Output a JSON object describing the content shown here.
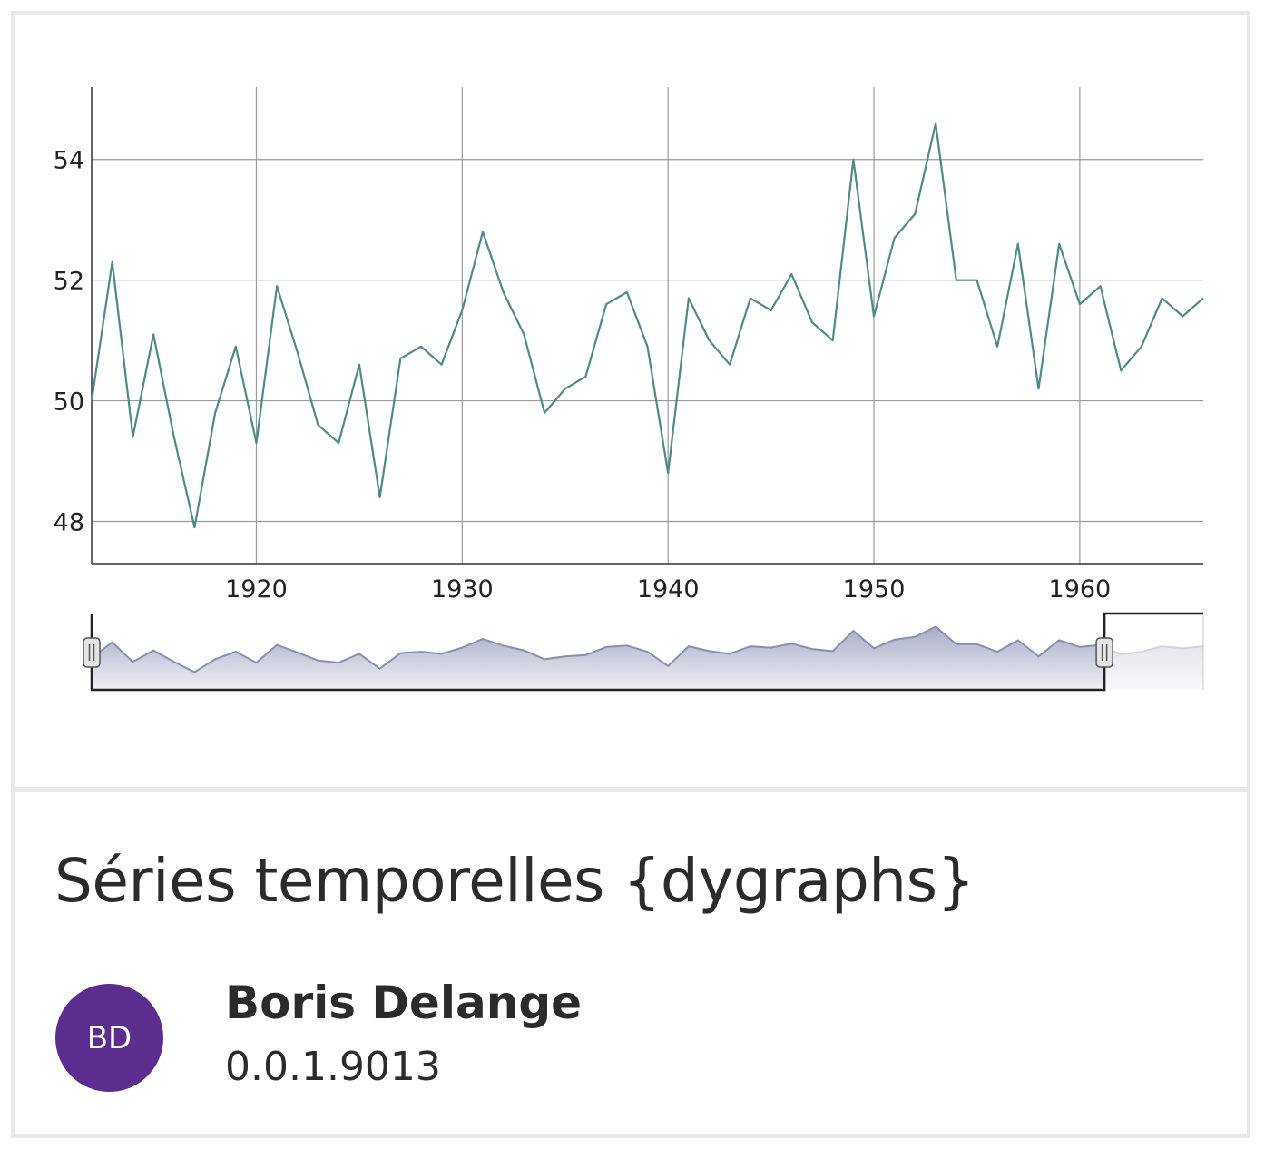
{
  "card": {
    "title": "Séries temporelles {dygraphs}",
    "author": {
      "name": "Boris Delange",
      "initials": "BD",
      "avatar_color": "#5b2d8e"
    },
    "version": "0.0.1.9013"
  },
  "colors": {
    "series_line": "#4f8a88",
    "grid": "#9a9a9a",
    "range_fill": "#c9cbd8",
    "range_line": "#8a8fb0",
    "range_handle": "#e4e4e4"
  },
  "chart_data": {
    "type": "line",
    "title": "",
    "xlabel": "",
    "ylabel": "",
    "x_ticks": [
      1920,
      1930,
      1940,
      1950,
      1960
    ],
    "y_ticks": [
      48,
      50,
      52,
      54
    ],
    "xlim": [
      1912,
      1966
    ],
    "ylim": [
      47.3,
      55.2
    ],
    "grid": true,
    "range_selector": {
      "full_x": [
        1912,
        1966
      ],
      "selected_x": [
        1912,
        1961.2
      ]
    },
    "series": [
      {
        "x": [
          1912,
          1913,
          1914,
          1915,
          1916,
          1917,
          1918,
          1919,
          1920,
          1921,
          1922,
          1923,
          1924,
          1925,
          1926,
          1927,
          1928,
          1929,
          1930,
          1931,
          1932,
          1933,
          1934,
          1935,
          1936,
          1937,
          1938,
          1939,
          1940,
          1941,
          1942,
          1943,
          1944,
          1945,
          1946,
          1947,
          1948,
          1949,
          1950,
          1951,
          1952,
          1953,
          1954,
          1955,
          1956,
          1957,
          1958,
          1959,
          1960,
          1961,
          1962,
          1963,
          1964,
          1965,
          1966
        ],
        "values": [
          50.0,
          52.3,
          49.4,
          51.1,
          49.4,
          47.9,
          49.8,
          50.9,
          49.3,
          51.9,
          50.8,
          49.6,
          49.3,
          50.6,
          48.4,
          50.7,
          50.9,
          50.6,
          51.5,
          52.8,
          51.8,
          51.1,
          49.8,
          50.2,
          50.4,
          51.6,
          51.8,
          50.9,
          48.8,
          51.7,
          51.0,
          50.6,
          51.7,
          51.5,
          52.1,
          51.3,
          51.0,
          54.0,
          51.4,
          52.7,
          53.1,
          54.6,
          52.0,
          52.0,
          50.9,
          52.6,
          50.2,
          52.6,
          51.6,
          51.9,
          50.5,
          50.9,
          51.7,
          51.4,
          51.7
        ]
      }
    ]
  }
}
